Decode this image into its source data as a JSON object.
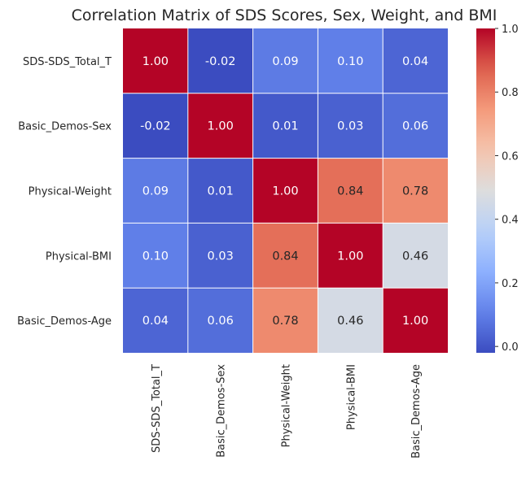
{
  "chart_data": {
    "type": "heatmap",
    "title": "Correlation Matrix of SDS Scores, Sex, Weight, and BMI",
    "row_labels": [
      "SDS-SDS_Total_T",
      "Basic_Demos-Sex",
      "Physical-Weight",
      "Physical-BMI",
      "Basic_Demos-Age"
    ],
    "col_labels": [
      "SDS-SDS_Total_T",
      "Basic_Demos-Sex",
      "Physical-Weight",
      "Physical-BMI",
      "Basic_Demos-Age"
    ],
    "values": [
      [
        1.0,
        -0.02,
        0.09,
        0.1,
        0.04
      ],
      [
        -0.02,
        1.0,
        0.01,
        0.03,
        0.06
      ],
      [
        0.09,
        0.01,
        1.0,
        0.84,
        0.78
      ],
      [
        0.1,
        0.03,
        0.84,
        1.0,
        0.46
      ],
      [
        0.04,
        0.06,
        0.78,
        0.46,
        1.0
      ]
    ],
    "annotation_format": "0.00",
    "colormap": "coolwarm",
    "colorbar": {
      "vmin": -0.02,
      "vmax": 1.0,
      "ticks": [
        0.0,
        0.2,
        0.4,
        0.6,
        0.8,
        1.0
      ],
      "tick_labels": [
        "0.0",
        "0.2",
        "0.4",
        "0.6",
        "0.8",
        "1.0"
      ]
    },
    "xlabel": "",
    "ylabel": ""
  }
}
